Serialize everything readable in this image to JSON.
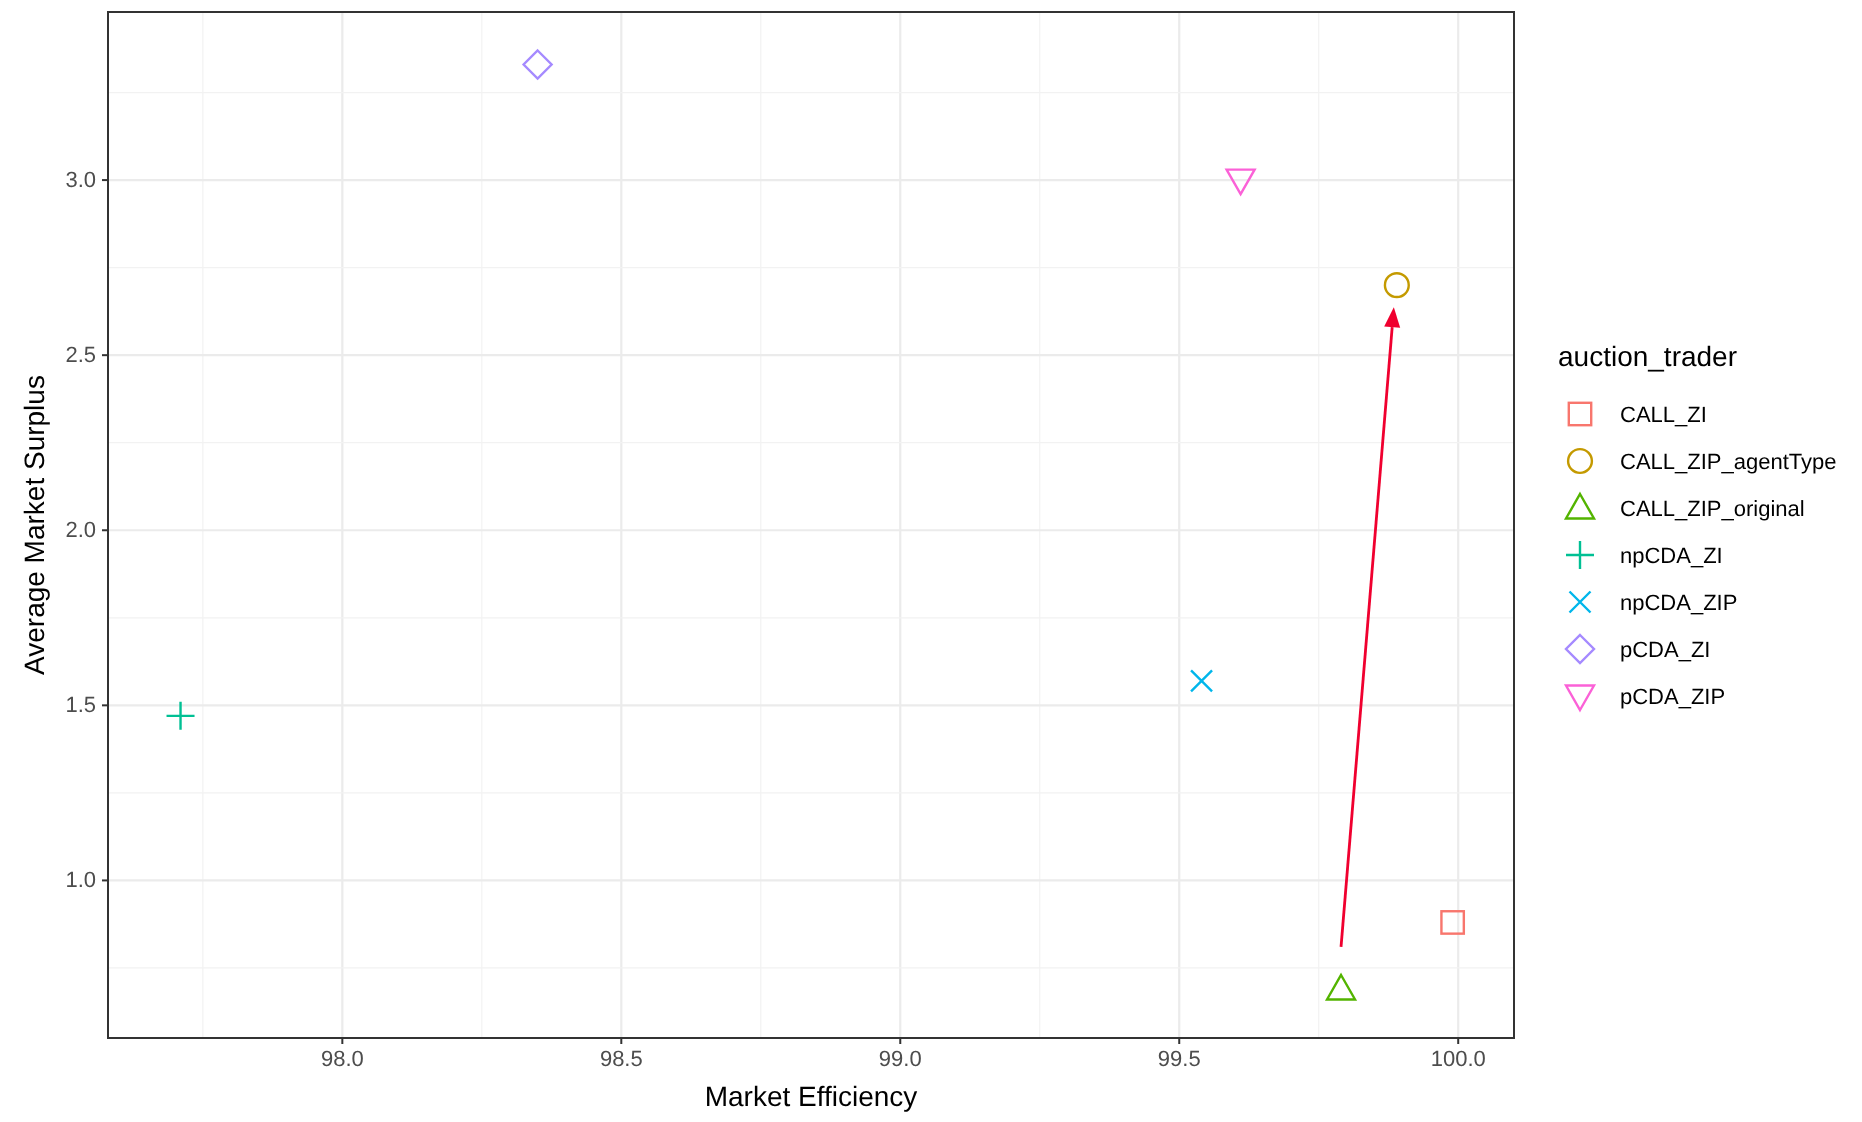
{
  "chart_data": {
    "type": "scatter",
    "xlabel": "Market Efficiency",
    "ylabel": "Average Market Surplus",
    "legend_title": "auction_trader",
    "legend": "right",
    "grid": true,
    "xlim": [
      97.58,
      100.1
    ],
    "xticks": [
      {
        "value": 98,
        "label": "98.0"
      },
      {
        "value": 98.5,
        "label": "98.5"
      },
      {
        "value": 99,
        "label": "99.0"
      },
      {
        "value": 99.5,
        "label": "99.5"
      },
      {
        "value": 100,
        "label": "100.0"
      }
    ],
    "ylim": [
      0.55,
      3.48
    ],
    "yticks": [
      {
        "value": 1,
        "label": "1.0"
      },
      {
        "value": 1.5,
        "label": "1.5"
      },
      {
        "value": 2,
        "label": "2.0"
      },
      {
        "value": 2.5,
        "label": "2.5"
      },
      {
        "value": 3,
        "label": "3.0"
      }
    ],
    "series": [
      {
        "name": "CALL_ZI",
        "color": "#f8766d",
        "marker": "square",
        "x": [
          99.99
        ],
        "values": [
          0.88
        ]
      },
      {
        "name": "CALL_ZIP_agentType",
        "color": "#c49a00",
        "marker": "circle",
        "x": [
          99.89
        ],
        "values": [
          2.7
        ]
      },
      {
        "name": "CALL_ZIP_original",
        "color": "#53b400",
        "marker": "triangle",
        "x": [
          99.79
        ],
        "values": [
          0.69
        ]
      },
      {
        "name": "npCDA_ZI",
        "color": "#00c094",
        "marker": "cross",
        "x": [
          97.71
        ],
        "values": [
          1.47
        ]
      },
      {
        "name": "npCDA_ZIP",
        "color": "#00b6eb",
        "marker": "x",
        "x": [
          99.54
        ],
        "values": [
          1.57
        ]
      },
      {
        "name": "pCDA_ZI",
        "color": "#a58aff",
        "marker": "diamond",
        "x": [
          98.35
        ],
        "values": [
          3.33
        ]
      },
      {
        "name": "pCDA_ZIP",
        "color": "#fb61d7",
        "marker": "triangle-down",
        "x": [
          99.61
        ],
        "values": [
          3.0
        ]
      }
    ]
  }
}
